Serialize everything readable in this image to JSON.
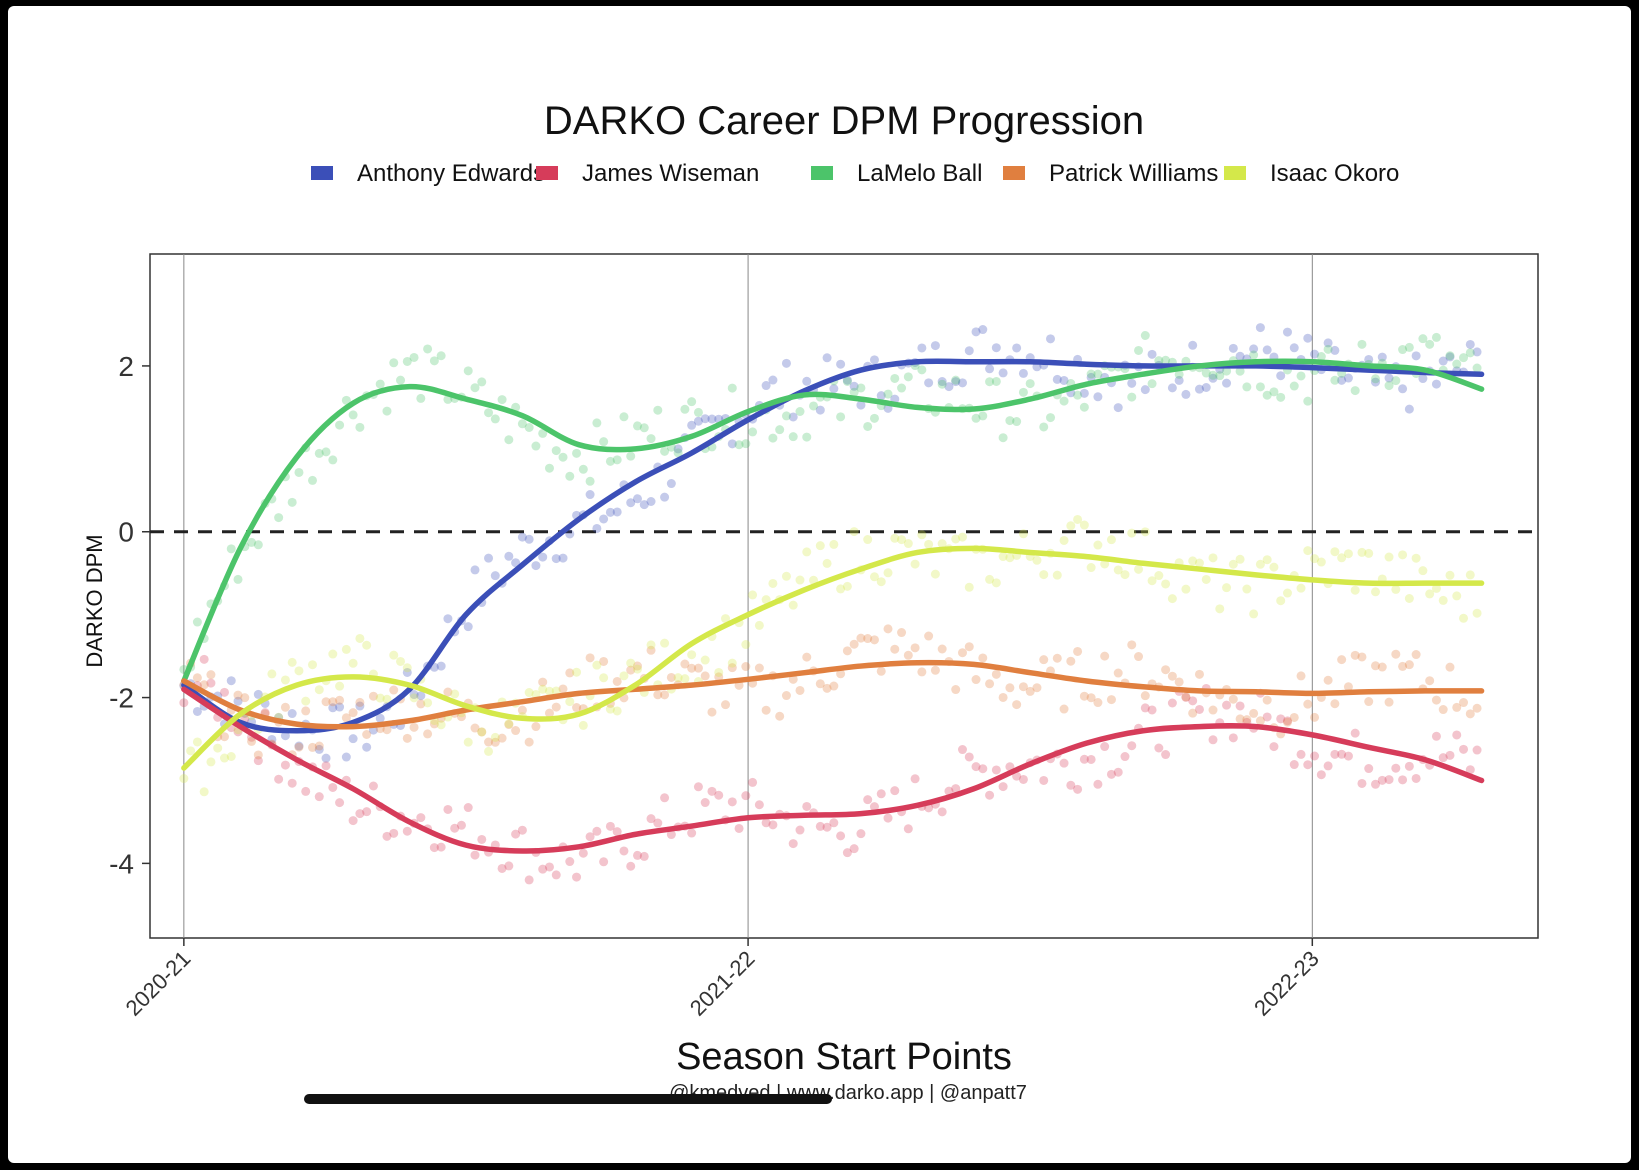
{
  "chart_data": {
    "type": "line",
    "title": "DARKO Career DPM Progression",
    "xlabel": "Season Start Points",
    "ylabel": "DARKO DPM",
    "caption": "@kmedved | www.darko.app | @anpatt7",
    "x_range": [
      -0.06,
      2.4
    ],
    "y_range": [
      -4.9,
      3.35
    ],
    "y_ticks": [
      2,
      0,
      -2,
      -4
    ],
    "y_tick_labels": [
      "2",
      "0",
      "-2",
      "-4"
    ],
    "x_ticks": [
      0,
      1,
      2
    ],
    "x_tick_labels": [
      "2020-21",
      "2021-22",
      "2022-23"
    ],
    "reference_line": 0,
    "legend_position": "top",
    "grid": "vertical lines at season starts",
    "series": [
      {
        "name": "Anthony Edwards",
        "color": "#3b4fb8",
        "x": [
          0,
          0.1,
          0.2,
          0.3,
          0.4,
          0.5,
          0.6,
          0.7,
          0.8,
          0.9,
          1.0,
          1.1,
          1.2,
          1.3,
          1.4,
          1.5,
          1.6,
          1.7,
          1.8,
          1.9,
          2.0,
          2.1,
          2.2,
          2.3
        ],
        "y": [
          -1.85,
          -2.3,
          -2.4,
          -2.3,
          -1.9,
          -1.0,
          -0.4,
          0.15,
          0.6,
          0.95,
          1.35,
          1.7,
          1.95,
          2.05,
          2.05,
          2.05,
          2.02,
          2.0,
          2.0,
          2.0,
          1.98,
          1.95,
          1.92,
          1.9
        ]
      },
      {
        "name": "James Wiseman",
        "color": "#d63c5a",
        "x": [
          0,
          0.1,
          0.2,
          0.3,
          0.4,
          0.5,
          0.6,
          0.7,
          0.8,
          0.9,
          1.0,
          1.1,
          1.2,
          1.3,
          1.4,
          1.5,
          1.6,
          1.7,
          1.8,
          1.9,
          2.0,
          2.1,
          2.2,
          2.3
        ],
        "y": [
          -1.9,
          -2.35,
          -2.75,
          -3.1,
          -3.5,
          -3.78,
          -3.85,
          -3.8,
          -3.65,
          -3.55,
          -3.45,
          -3.42,
          -3.4,
          -3.3,
          -3.1,
          -2.8,
          -2.55,
          -2.4,
          -2.35,
          -2.35,
          -2.45,
          -2.6,
          -2.75,
          -3.0
        ]
      },
      {
        "name": "LaMelo Ball",
        "color": "#4cc46a",
        "x": [
          0,
          0.1,
          0.2,
          0.3,
          0.4,
          0.5,
          0.6,
          0.7,
          0.8,
          0.9,
          1.0,
          1.1,
          1.2,
          1.3,
          1.4,
          1.5,
          1.6,
          1.7,
          1.8,
          1.9,
          2.0,
          2.1,
          2.2,
          2.3
        ],
        "y": [
          -1.8,
          -0.2,
          0.9,
          1.55,
          1.75,
          1.6,
          1.4,
          1.05,
          1.0,
          1.15,
          1.45,
          1.65,
          1.6,
          1.5,
          1.48,
          1.6,
          1.78,
          1.9,
          2.0,
          2.05,
          2.05,
          2.0,
          1.95,
          1.72
        ]
      },
      {
        "name": "Patrick Williams",
        "color": "#e07f3f",
        "x": [
          0,
          0.1,
          0.2,
          0.3,
          0.4,
          0.5,
          0.6,
          0.7,
          0.8,
          0.9,
          1.0,
          1.1,
          1.2,
          1.3,
          1.4,
          1.5,
          1.6,
          1.7,
          1.8,
          1.9,
          2.0,
          2.1,
          2.2,
          2.3
        ],
        "y": [
          -1.8,
          -2.15,
          -2.32,
          -2.35,
          -2.28,
          -2.15,
          -2.05,
          -1.95,
          -1.9,
          -1.85,
          -1.78,
          -1.7,
          -1.62,
          -1.58,
          -1.6,
          -1.7,
          -1.8,
          -1.87,
          -1.92,
          -1.93,
          -1.95,
          -1.93,
          -1.92,
          -1.92
        ]
      },
      {
        "name": "Isaac Okoro",
        "color": "#d4e84a",
        "x": [
          0,
          0.1,
          0.2,
          0.3,
          0.4,
          0.5,
          0.6,
          0.7,
          0.8,
          0.9,
          1.0,
          1.1,
          1.2,
          1.3,
          1.4,
          1.5,
          1.6,
          1.7,
          1.8,
          1.9,
          2.0,
          2.1,
          2.2,
          2.3
        ],
        "y": [
          -2.85,
          -2.2,
          -1.85,
          -1.75,
          -1.85,
          -2.1,
          -2.25,
          -2.2,
          -1.85,
          -1.35,
          -1.0,
          -0.7,
          -0.45,
          -0.25,
          -0.2,
          -0.25,
          -0.3,
          -0.38,
          -0.45,
          -0.52,
          -0.58,
          -0.62,
          -0.62,
          -0.62
        ]
      }
    ]
  }
}
